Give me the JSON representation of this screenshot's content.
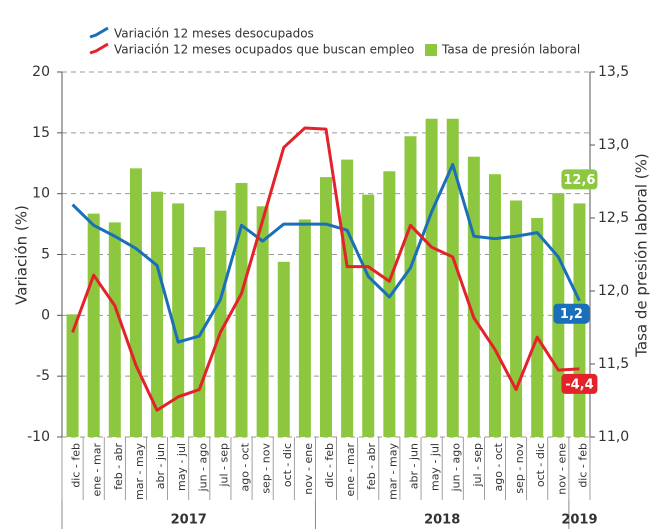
{
  "chart_data": {
    "type": "bar-line",
    "categories": [
      "dic - feb",
      "ene - mar",
      "feb - abr",
      "mar - may",
      "abr - jun",
      "may - jul",
      "jun - ago",
      "jul - sep",
      "ago - oct",
      "sep - nov",
      "oct - dic",
      "nov - ene",
      "dic - feb",
      "ene - mar",
      "feb - abr",
      "mar - may",
      "abr - jun",
      "may - jul",
      "jun - ago",
      "jul - sep",
      "ago - oct",
      "sep - nov",
      "oct - dic",
      "nov - ene",
      "dic - feb"
    ],
    "year_groups": [
      {
        "label": "2017",
        "count": 12
      },
      {
        "label": "2018",
        "count": 12
      },
      {
        "label": "2019",
        "count": 1
      }
    ],
    "series": [
      {
        "name": "Variación 12 meses desocupados",
        "type": "line",
        "color": "#1a6fba",
        "values": [
          9.1,
          7.4,
          6.5,
          5.5,
          4.1,
          -2.2,
          -1.7,
          1.3,
          7.4,
          6.1,
          7.5,
          7.5,
          7.5,
          7.0,
          3.2,
          1.5,
          3.9,
          8.5,
          12.4,
          6.5,
          6.3,
          6.5,
          6.8,
          4.8,
          1.2
        ],
        "value_labels": [
          null,
          null,
          null,
          null,
          null,
          null,
          null,
          null,
          null,
          null,
          null,
          null,
          null,
          null,
          null,
          null,
          null,
          null,
          null,
          null,
          null,
          null,
          null,
          null,
          "1,2"
        ]
      },
      {
        "name": "Variación 12 meses ocupados que buscan empleo",
        "type": "line",
        "color": "#e3222a",
        "values": [
          -1.4,
          3.3,
          0.8,
          -4.1,
          -7.8,
          -6.7,
          -6.1,
          -1.4,
          1.8,
          7.8,
          13.8,
          15.4,
          15.3,
          4.0,
          4.0,
          2.8,
          7.4,
          5.6,
          4.8,
          -0.2,
          -2.8,
          -6.1,
          -1.8,
          -4.5,
          -4.4
        ],
        "value_labels": [
          null,
          null,
          null,
          null,
          null,
          null,
          null,
          null,
          null,
          null,
          null,
          null,
          null,
          null,
          null,
          null,
          null,
          null,
          null,
          null,
          null,
          null,
          null,
          null,
          "-4,4"
        ]
      },
      {
        "name": "Tasa de presión laboral",
        "type": "bar",
        "axis": "y2",
        "color": "#8dc63f",
        "values": [
          11.84,
          12.53,
          12.47,
          12.84,
          12.68,
          12.6,
          12.3,
          12.55,
          12.74,
          12.58,
          12.2,
          12.49,
          12.78,
          12.9,
          12.66,
          12.82,
          13.06,
          13.18,
          13.18,
          12.92,
          12.8,
          12.62,
          12.5,
          12.67,
          12.6
        ],
        "value_labels": [
          null,
          null,
          null,
          null,
          null,
          null,
          null,
          null,
          null,
          null,
          null,
          null,
          null,
          null,
          null,
          null,
          null,
          null,
          null,
          null,
          null,
          null,
          null,
          null,
          "12,6"
        ]
      }
    ],
    "ylabel": "Variación (%)",
    "y2label": "Tasa de presión laboral (%)",
    "ylim": [
      -10,
      20
    ],
    "yticks": [
      -10,
      -5,
      0,
      5,
      10,
      15,
      20
    ],
    "y2lim": [
      11,
      13.5
    ],
    "y2ticks": [
      {
        "value": 11,
        "label": "11,0"
      },
      {
        "value": 11.5,
        "label": "11,5"
      },
      {
        "value": 12,
        "label": "12,0"
      },
      {
        "value": 12.5,
        "label": "12,5"
      },
      {
        "value": 13,
        "label": "13,0"
      },
      {
        "value": 13.5,
        "label": "13,5"
      }
    ],
    "grid": true,
    "legend": "top"
  }
}
